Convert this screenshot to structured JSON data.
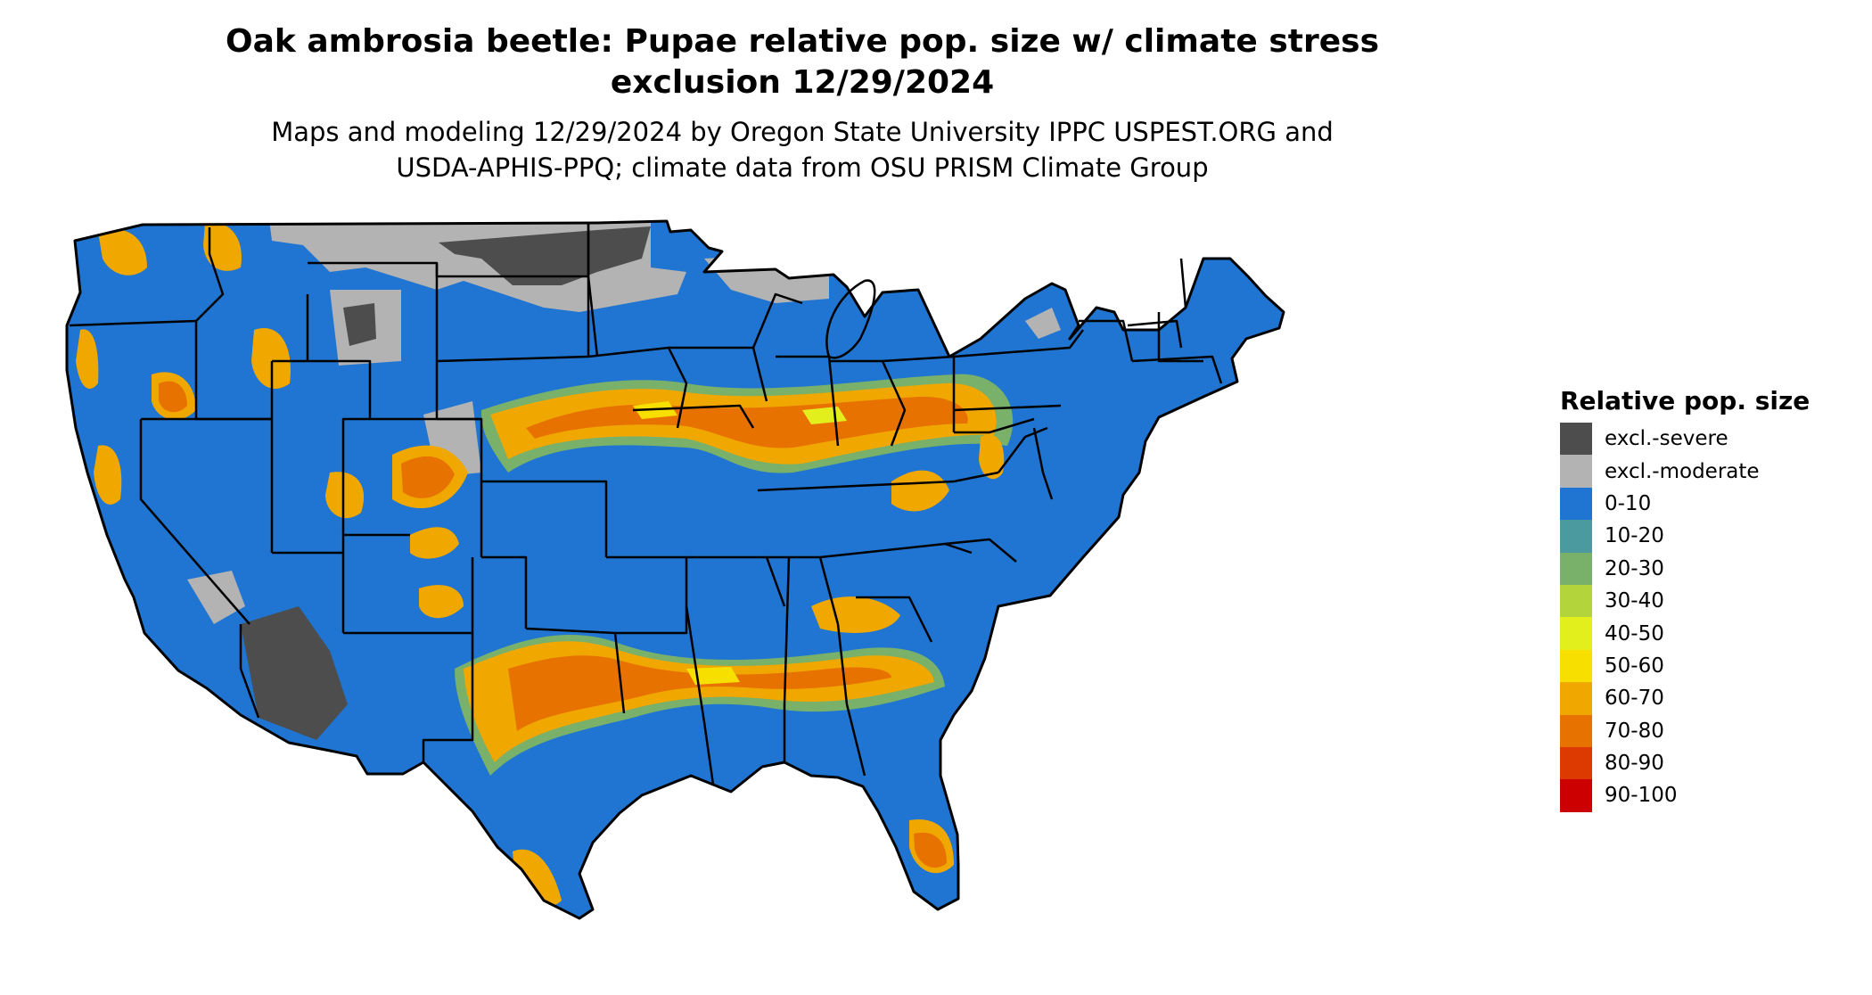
{
  "title_line1": "Oak ambrosia beetle: Pupae relative pop. size w/ climate stress",
  "title_line2": "exclusion 12/29/2024",
  "subtitle_line1": "Maps and modeling 12/29/2024 by Oregon State University IPPC USPEST.ORG and",
  "subtitle_line2": "USDA-APHIS-PPQ; climate data from OSU PRISM Climate Group",
  "legend": {
    "title": "Relative pop. size",
    "items": [
      {
        "label": "excl.-severe",
        "color": "#4d4d4d"
      },
      {
        "label": "excl.-moderate",
        "color": "#b3b3b3"
      },
      {
        "label": "0-10",
        "color": "#1f75d1"
      },
      {
        "label": "10-20",
        "color": "#4a9aa0"
      },
      {
        "label": "20-30",
        "color": "#79b06a"
      },
      {
        "label": "30-40",
        "color": "#b3d43a"
      },
      {
        "label": "40-50",
        "color": "#e2ef1c"
      },
      {
        "label": "50-60",
        "color": "#f7e000"
      },
      {
        "label": "60-70",
        "color": "#f0a800"
      },
      {
        "label": "70-80",
        "color": "#e87200"
      },
      {
        "label": "80-90",
        "color": "#dc3a00"
      },
      {
        "label": "90-100",
        "color": "#cc0000"
      }
    ]
  }
}
